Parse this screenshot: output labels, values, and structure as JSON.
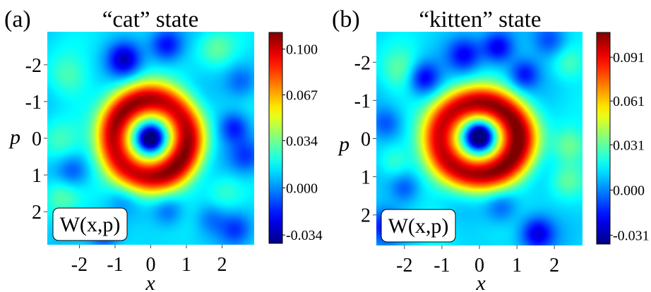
{
  "chart_data": [
    {
      "type": "heatmap",
      "panel_label": "(a)",
      "title": "“cat” state",
      "xlabel": "x",
      "ylabel": "p",
      "x_ticks": [
        "-2",
        "-1",
        "0",
        "1",
        "2"
      ],
      "y_ticks": [
        "-2",
        "-1",
        "0",
        "1",
        "2"
      ],
      "xlim": [
        -2.9,
        2.9
      ],
      "ylim": [
        2.9,
        -2.9
      ],
      "y_axis_direction": "increasing downward",
      "colormap": "jet",
      "color_range": [
        -0.04,
        0.112
      ],
      "colorbar_ticks": [
        "0.100",
        "0.067",
        "0.034",
        "0.000",
        "-0.034"
      ],
      "annotation": "W(x,p)",
      "description": {
        "peak_ring_value": 0.105,
        "ring_radius": 1.05,
        "center_value": -0.034
      }
    },
    {
      "type": "heatmap",
      "panel_label": "(b)",
      "title": "“kitten” state",
      "xlabel": "x",
      "ylabel": "p",
      "x_ticks": [
        "-2",
        "-1",
        "0",
        "1",
        "2"
      ],
      "y_ticks": [
        "-2",
        "-1",
        "0",
        "1",
        "2"
      ],
      "xlim": [
        -2.75,
        2.75
      ],
      "ylim": [
        2.8,
        -2.8
      ],
      "y_axis_direction": "increasing downward",
      "colormap": "jet",
      "color_range": [
        -0.037,
        0.108
      ],
      "colorbar_ticks": [
        "0.091",
        "0.061",
        "0.031",
        "0.000",
        "-0.031"
      ],
      "annotation": "W(x,p)",
      "description": {
        "peak_ring_value": 0.1,
        "ring_radius": 1.0,
        "center_value": -0.031
      }
    }
  ]
}
